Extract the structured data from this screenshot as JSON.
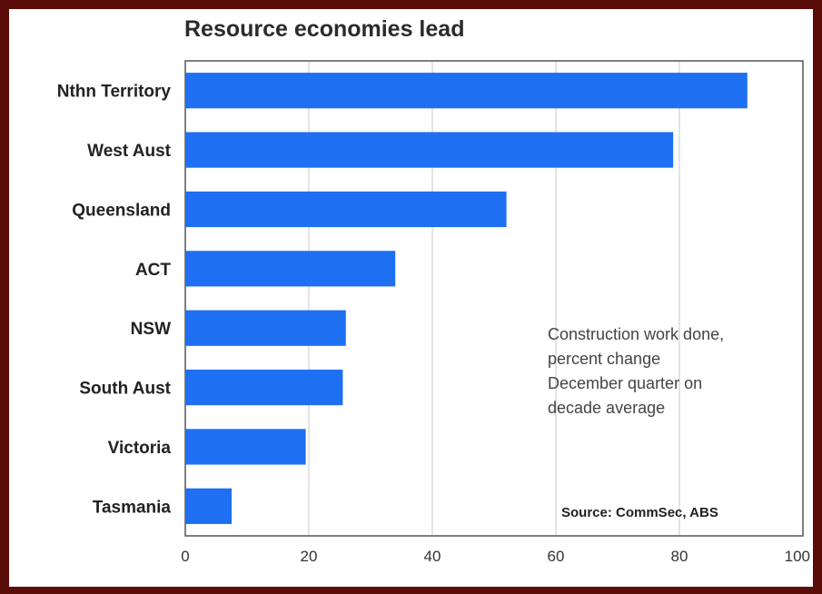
{
  "chart_data": {
    "type": "bar",
    "orientation": "horizontal",
    "title": "Resource economies lead",
    "categories": [
      "Nthn Territory",
      "West Aust",
      "Queensland",
      "ACT",
      "NSW",
      "South Aust",
      "Victoria",
      "Tasmania"
    ],
    "values": [
      91,
      79,
      52,
      34,
      26,
      25.5,
      19.5,
      7.5
    ],
    "xlim": [
      0,
      100
    ],
    "xticks": [
      0,
      20,
      40,
      60,
      80,
      100
    ],
    "grid": true,
    "bar_color": "#1e6ff2",
    "annotation": [
      "Construction work done,",
      "percent change",
      "December quarter on",
      "decade average"
    ],
    "source": "Source: CommSec, ABS"
  }
}
